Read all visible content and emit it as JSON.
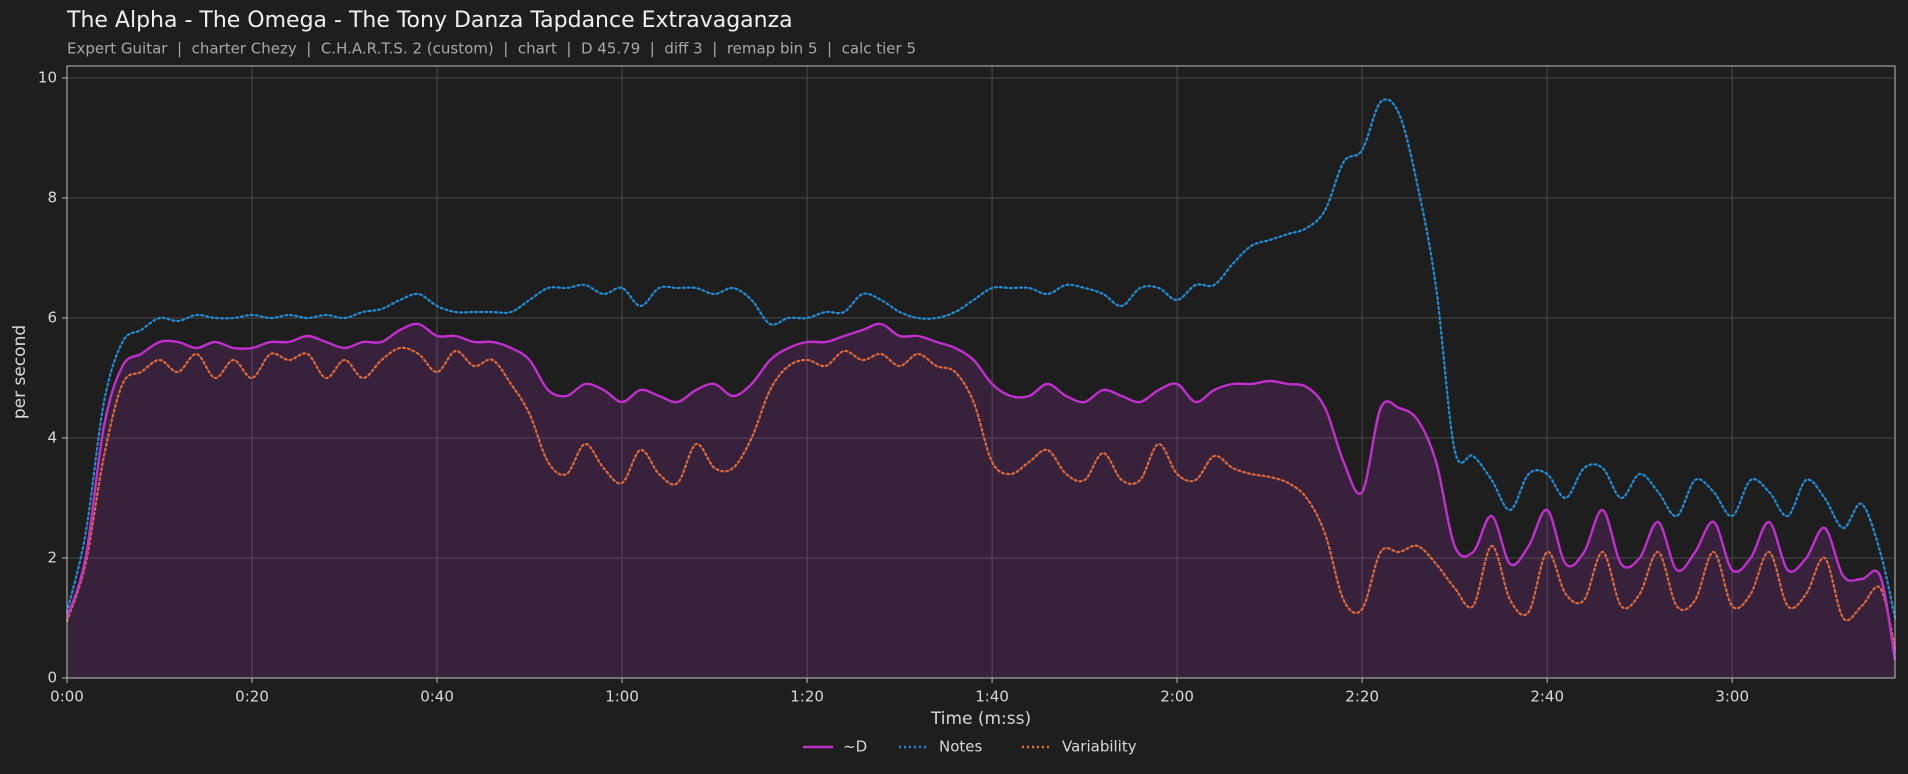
{
  "chart_data": {
    "type": "line",
    "title": "The Alpha - The Omega - The Tony Danza Tapdance Extravaganza",
    "subtitle": "Expert Guitar  |  charter Chezy  |  C.H.A.R.T.S. 2 (custom)  |  chart  |  D 45.79  |  diff 3  |  remap bin 5  |  calc tier 5",
    "xlabel": "Time (m:ss)",
    "ylabel": "per second",
    "xlim": [
      0,
      197.6
    ],
    "ylim": [
      0,
      10.2
    ],
    "xticks": [
      {
        "value": 0,
        "label": "0:00"
      },
      {
        "value": 20,
        "label": "0:20"
      },
      {
        "value": 40,
        "label": "0:40"
      },
      {
        "value": 60,
        "label": "1:00"
      },
      {
        "value": 80,
        "label": "1:20"
      },
      {
        "value": 100,
        "label": "1:40"
      },
      {
        "value": 120,
        "label": "2:00"
      },
      {
        "value": 140,
        "label": "2:20"
      },
      {
        "value": 160,
        "label": "2:40"
      },
      {
        "value": 180,
        "label": "3:00"
      }
    ],
    "yticks": [
      0,
      2,
      4,
      6,
      8,
      10
    ],
    "grid": true,
    "legend": "bottom",
    "x": [
      0,
      2,
      4,
      6,
      8,
      10,
      12,
      14,
      16,
      18,
      20,
      22,
      24,
      26,
      28,
      30,
      32,
      34,
      36,
      38,
      40,
      42,
      44,
      46,
      48,
      50,
      52,
      54,
      56,
      58,
      60,
      62,
      64,
      66,
      68,
      70,
      72,
      74,
      76,
      78,
      80,
      82,
      84,
      86,
      88,
      90,
      92,
      94,
      96,
      98,
      100,
      102,
      104,
      106,
      108,
      110,
      112,
      114,
      116,
      118,
      120,
      122,
      124,
      126,
      128,
      130,
      132,
      134,
      136,
      138,
      140,
      142,
      144,
      146,
      148,
      150,
      152,
      154,
      156,
      158,
      160,
      162,
      164,
      166,
      168,
      170,
      172,
      174,
      176,
      178,
      180,
      182,
      184,
      186,
      188,
      190,
      192,
      194,
      196,
      197.6
    ],
    "series": [
      {
        "name": "~D",
        "color": "#c22fcf",
        "style": "solid",
        "fill": true,
        "values": [
          1.0,
          2.0,
          4.2,
          5.2,
          5.4,
          5.6,
          5.6,
          5.5,
          5.6,
          5.5,
          5.5,
          5.6,
          5.6,
          5.7,
          5.6,
          5.5,
          5.6,
          5.6,
          5.8,
          5.9,
          5.7,
          5.7,
          5.6,
          5.6,
          5.5,
          5.3,
          4.8,
          4.7,
          4.9,
          4.8,
          4.6,
          4.8,
          4.7,
          4.6,
          4.8,
          4.9,
          4.7,
          4.9,
          5.3,
          5.5,
          5.6,
          5.6,
          5.7,
          5.8,
          5.9,
          5.7,
          5.7,
          5.6,
          5.5,
          5.3,
          4.9,
          4.7,
          4.7,
          4.9,
          4.7,
          4.6,
          4.8,
          4.7,
          4.6,
          4.8,
          4.9,
          4.6,
          4.8,
          4.9,
          4.9,
          4.95,
          4.9,
          4.85,
          4.5,
          3.6,
          3.1,
          4.5,
          4.5,
          4.3,
          3.6,
          2.2,
          2.1,
          2.7,
          1.9,
          2.2,
          2.8,
          1.9,
          2.1,
          2.8,
          1.9,
          2.0,
          2.6,
          1.8,
          2.1,
          2.6,
          1.8,
          2.0,
          2.6,
          1.8,
          2.0,
          2.5,
          1.7,
          1.65,
          1.7,
          0.3
        ]
      },
      {
        "name": "Notes",
        "color": "#1f8ed6",
        "style": "dotted",
        "fill": false,
        "values": [
          1.1,
          2.4,
          4.6,
          5.6,
          5.8,
          6.0,
          5.95,
          6.05,
          6.0,
          6.0,
          6.05,
          6.0,
          6.05,
          6.0,
          6.05,
          6.0,
          6.1,
          6.15,
          6.3,
          6.4,
          6.2,
          6.1,
          6.1,
          6.1,
          6.1,
          6.3,
          6.5,
          6.5,
          6.55,
          6.4,
          6.5,
          6.2,
          6.5,
          6.5,
          6.5,
          6.4,
          6.5,
          6.3,
          5.9,
          6.0,
          6.0,
          6.1,
          6.1,
          6.4,
          6.3,
          6.1,
          6.0,
          6.0,
          6.1,
          6.3,
          6.5,
          6.5,
          6.5,
          6.4,
          6.55,
          6.5,
          6.4,
          6.2,
          6.5,
          6.5,
          6.3,
          6.55,
          6.55,
          6.9,
          7.2,
          7.3,
          7.4,
          7.5,
          7.8,
          8.6,
          8.8,
          9.6,
          9.4,
          8.2,
          6.5,
          3.8,
          3.7,
          3.3,
          2.8,
          3.4,
          3.4,
          3.0,
          3.5,
          3.5,
          3.0,
          3.4,
          3.1,
          2.7,
          3.3,
          3.1,
          2.7,
          3.3,
          3.1,
          2.7,
          3.3,
          3.0,
          2.5,
          2.9,
          2.1,
          1.0
        ]
      },
      {
        "name": "Variability",
        "color": "#e3741f",
        "style": "dotted",
        "fill": false,
        "values": [
          0.95,
          1.9,
          3.7,
          4.9,
          5.1,
          5.3,
          5.1,
          5.4,
          5.0,
          5.3,
          5.0,
          5.4,
          5.3,
          5.4,
          5.0,
          5.3,
          5.0,
          5.3,
          5.5,
          5.4,
          5.1,
          5.45,
          5.2,
          5.3,
          4.9,
          4.4,
          3.6,
          3.4,
          3.9,
          3.5,
          3.25,
          3.8,
          3.4,
          3.25,
          3.9,
          3.5,
          3.5,
          4.0,
          4.8,
          5.2,
          5.3,
          5.2,
          5.45,
          5.3,
          5.4,
          5.2,
          5.4,
          5.2,
          5.1,
          4.6,
          3.6,
          3.4,
          3.6,
          3.8,
          3.4,
          3.3,
          3.75,
          3.3,
          3.3,
          3.9,
          3.4,
          3.3,
          3.7,
          3.5,
          3.4,
          3.35,
          3.25,
          3.0,
          2.4,
          1.3,
          1.15,
          2.1,
          2.1,
          2.2,
          1.9,
          1.5,
          1.2,
          2.2,
          1.3,
          1.1,
          2.1,
          1.4,
          1.3,
          2.1,
          1.2,
          1.4,
          2.1,
          1.2,
          1.3,
          2.1,
          1.2,
          1.4,
          2.1,
          1.2,
          1.4,
          2.0,
          1.0,
          1.2,
          1.5,
          0.5
        ]
      }
    ]
  }
}
